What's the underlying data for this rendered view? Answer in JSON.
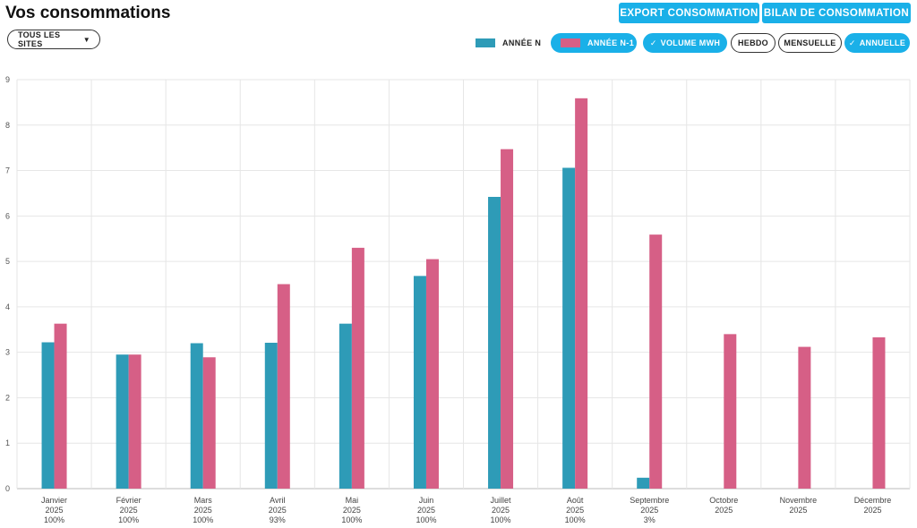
{
  "header": {
    "title": "Vos consommations",
    "site_selector": {
      "value": "TOUS LES SITES",
      "icon": "caret-down-icon"
    },
    "buttons": {
      "export": "EXPORT CONSOMMATION",
      "bilan": "BILAN DE CONSOMMATION"
    }
  },
  "legend": {
    "annee_n": "ANNÉE N",
    "annee_n1": "ANNÉE N-1"
  },
  "filters": {
    "volume": "VOLUME MWH",
    "hebdo": "HEBDO",
    "mensuelle": "MENSUELLE",
    "annuelle": "ANNUELLE",
    "check_icon": "check-icon"
  },
  "colors": {
    "annee_n": "#2e9bb7",
    "annee_n1": "#d65f86",
    "accent": "#1ab0e8"
  },
  "chart_data": {
    "type": "bar",
    "categories": [
      "Janvier",
      "Février",
      "Mars",
      "Avril",
      "Mai",
      "Juin",
      "Juillet",
      "Août",
      "Septembre",
      "Octobre",
      "Novembre",
      "Décembre"
    ],
    "category_years": [
      "2025",
      "2025",
      "2025",
      "2025",
      "2025",
      "2025",
      "2025",
      "2025",
      "2025",
      "2025",
      "2025",
      "2025"
    ],
    "category_completeness": [
      "100%",
      "100%",
      "100%",
      "93%",
      "100%",
      "100%",
      "100%",
      "100%",
      "3%",
      "",
      "",
      ""
    ],
    "series": [
      {
        "name": "ANNÉE N",
        "values": [
          3.22,
          2.95,
          3.2,
          3.21,
          3.63,
          4.68,
          6.42,
          7.06,
          0.24,
          null,
          null,
          null
        ]
      },
      {
        "name": "ANNÉE N-1",
        "values": [
          3.63,
          2.95,
          2.89,
          4.5,
          5.3,
          5.05,
          7.47,
          8.59,
          5.59,
          3.4,
          3.12,
          3.33
        ]
      }
    ],
    "xlabel": "",
    "ylabel": "",
    "ylim": [
      0,
      9
    ],
    "yticks": [
      0,
      1,
      2,
      3,
      4,
      5,
      6,
      7,
      8,
      9
    ],
    "grid": true
  }
}
